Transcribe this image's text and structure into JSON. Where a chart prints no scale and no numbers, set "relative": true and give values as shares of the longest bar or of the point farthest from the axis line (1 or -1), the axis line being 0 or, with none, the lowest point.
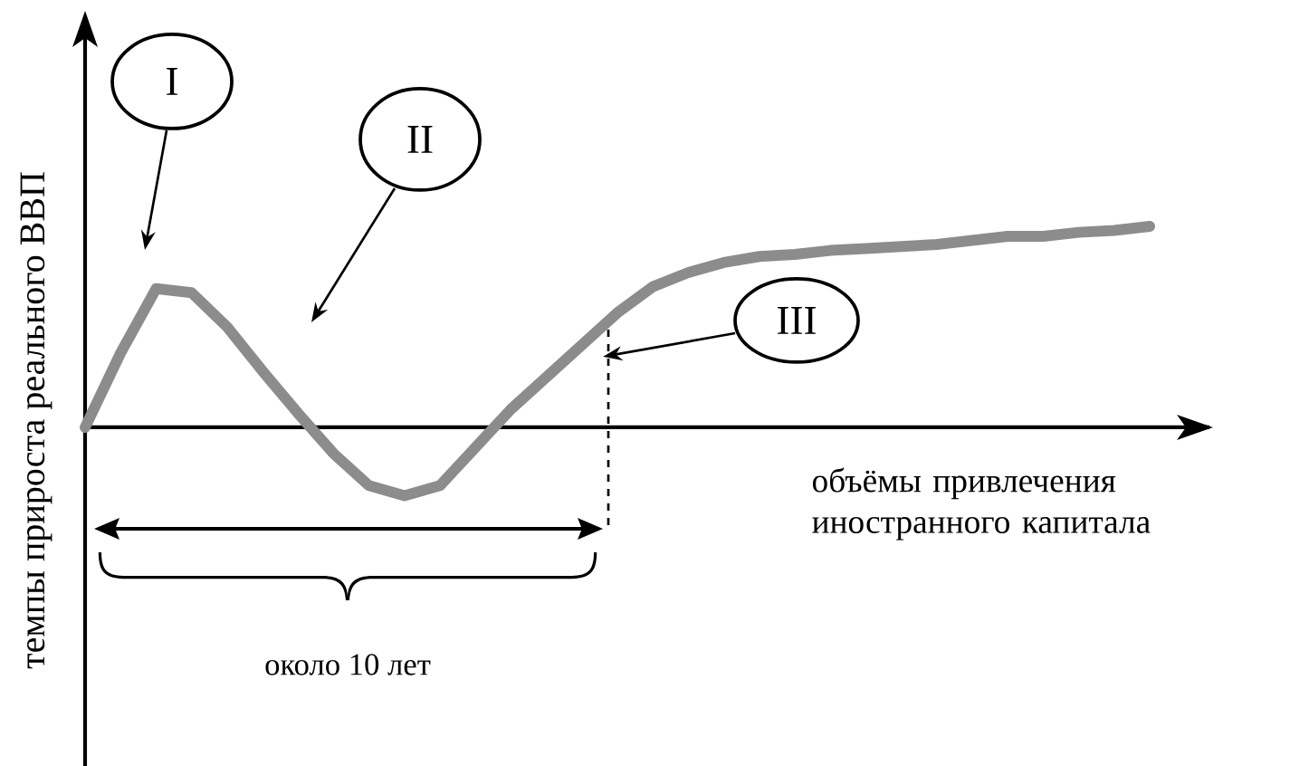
{
  "chart_data": {
    "type": "line",
    "relative": true,
    "ylabel": "темпы прироста реального ВВП",
    "xlabel": "объёмы привлечения иностранного капитала",
    "categories": [
      null,
      null,
      null,
      null,
      null,
      null,
      null,
      null,
      null,
      null,
      null,
      null,
      null,
      null,
      null,
      null,
      null,
      null,
      null,
      null,
      null,
      null,
      null,
      null,
      null,
      null,
      null,
      null,
      null,
      null,
      null
    ],
    "series": [
      {
        "color": "#8c8c8c",
        "values": [
          0,
          0.37,
          0.69,
          0.67,
          0.5,
          0.28,
          0.07,
          -0.13,
          -0.29,
          -0.34,
          -0.29,
          -0.1,
          0.09,
          0.25,
          0.41,
          0.57,
          0.7,
          0.77,
          0.82,
          0.85,
          0.86,
          0.88,
          0.89,
          0.9,
          0.91,
          0.93,
          0.95,
          0.95,
          0.97,
          0.98,
          1
        ]
      }
    ],
    "annotations": [
      "I",
      "II",
      "III",
      "около 10 лет"
    ]
  }
}
